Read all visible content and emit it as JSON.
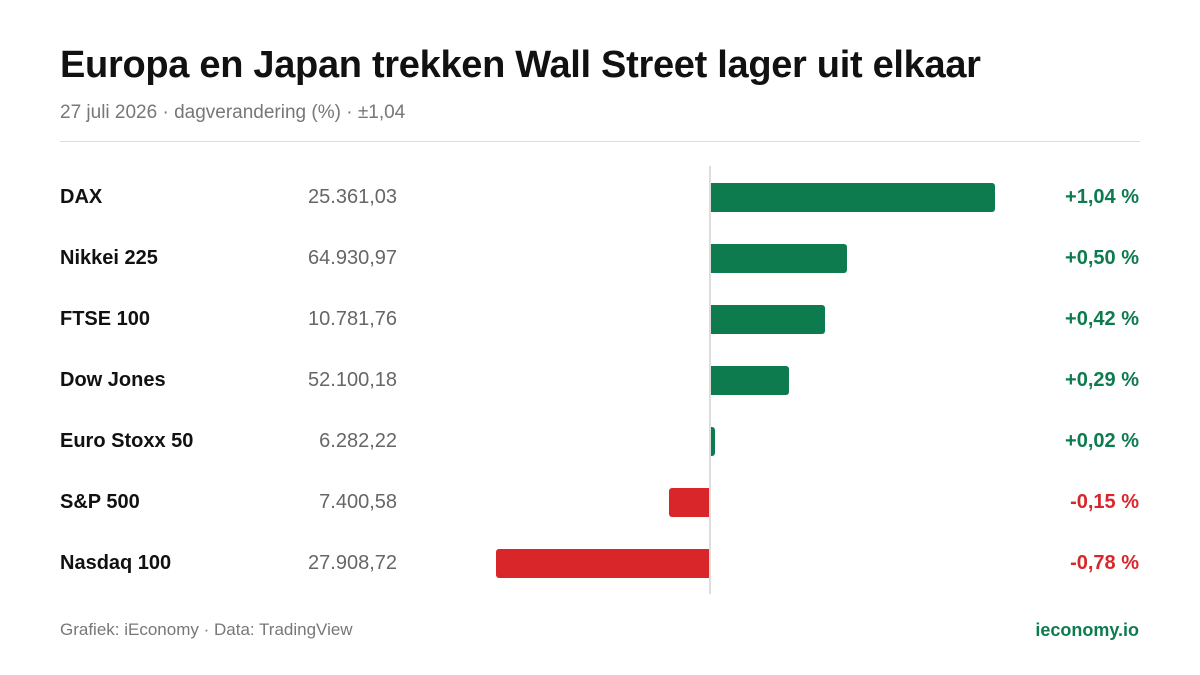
{
  "header": {
    "title": "Europa en Japan trekken Wall Street lager uit elkaar",
    "subtitle": "27 juli 2026 · dagverandering (%) · ±1,04"
  },
  "footer": {
    "source": "Grafiek: iEconomy · Data: TradingView",
    "brand": "ieconomy.io"
  },
  "colors": {
    "positive": "#0e7b4f",
    "negative": "#d9262a",
    "brand": "#0e7b4f"
  },
  "chart_data": {
    "type": "bar",
    "orientation": "horizontal",
    "grid": false,
    "xlim": [
      -1.04,
      1.04
    ],
    "categories": [
      "DAX",
      "Nikkei 225",
      "FTSE 100",
      "Dow Jones",
      "Euro Stoxx 50",
      "S&P 500",
      "Nasdaq 100"
    ],
    "values": [
      1.04,
      0.5,
      0.42,
      0.29,
      0.02,
      -0.15,
      -0.78
    ],
    "levels": [
      "25.361,03",
      "64.930,97",
      "10.781,76",
      "52.100,18",
      "6.282,22",
      "7.400,58",
      "27.908,72"
    ],
    "labels": [
      "+1,04 %",
      "+0,50 %",
      "+0,42 %",
      "+0,29 %",
      "+0,02 %",
      "-0,15 %",
      "-0,78 %"
    ]
  }
}
